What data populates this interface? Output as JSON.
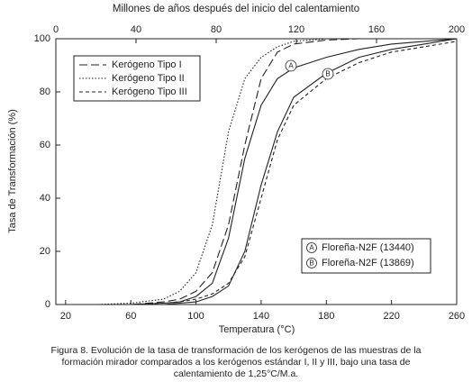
{
  "chart_data": {
    "type": "line",
    "x2_label": "Millones de años después del inicio del calentamiento",
    "x_label": "Temperatura (°C)",
    "y_label": "Tasa de Transformación (%)",
    "xlim": [
      14,
      260
    ],
    "xticks": [
      20,
      60,
      100,
      140,
      180,
      220,
      260
    ],
    "x2lim": [
      0,
      200
    ],
    "x2ticks": [
      0,
      40,
      80,
      120,
      160,
      200
    ],
    "ylim": [
      0,
      100
    ],
    "yticks": [
      0,
      20,
      40,
      60,
      80,
      100
    ],
    "grid": false,
    "x": [
      40,
      60,
      80,
      90,
      100,
      110,
      120,
      130,
      140,
      150,
      160,
      180,
      200,
      220,
      240,
      260
    ],
    "series": [
      {
        "name": "Kerógeno Tipo I",
        "style": "dashed",
        "color": "#222",
        "legend": "top-left",
        "values": [
          0,
          0,
          1,
          2,
          5,
          12,
          30,
          60,
          85,
          95,
          98,
          99.5,
          100,
          100,
          100,
          100
        ]
      },
      {
        "name": "Kerógeno Tipo II",
        "style": "dotted",
        "color": "#222",
        "legend": "top-left",
        "values": [
          0,
          0.5,
          2,
          5,
          12,
          30,
          65,
          85,
          93,
          97,
          99,
          100,
          100,
          100,
          100,
          100
        ]
      },
      {
        "name": "Kerógeno Tipo III",
        "style": "short-dashed",
        "color": "#222",
        "legend": "top-left",
        "values": [
          0,
          0,
          0.5,
          1,
          2,
          4,
          8,
          18,
          40,
          62,
          75,
          85,
          91,
          95,
          97,
          99
        ]
      },
      {
        "name": "Floreña-N2F (13440)",
        "marker_label": "A",
        "style": "solid",
        "color": "#222",
        "legend": "bottom-right",
        "values": [
          0,
          0,
          0.5,
          1,
          3,
          8,
          25,
          55,
          75,
          85,
          89,
          93,
          96,
          98,
          99,
          100
        ]
      },
      {
        "name": "Floreña-N2F (13869)",
        "marker_label": "B",
        "style": "solid",
        "color": "#222",
        "legend": "bottom-right",
        "values": [
          0,
          0,
          0,
          0.5,
          1,
          3,
          7,
          20,
          45,
          65,
          78,
          87,
          93,
          96,
          98,
          100
        ]
      }
    ],
    "caption": [
      "Figura 8.  Evolución de la tasa de transformación de los kerógenos de las muestras de la",
      "formación mirador comparados a los kerógenos estándar I, II y III, bajo una tasa de",
      "calentamiento de 1,25°C/M.a."
    ]
  }
}
